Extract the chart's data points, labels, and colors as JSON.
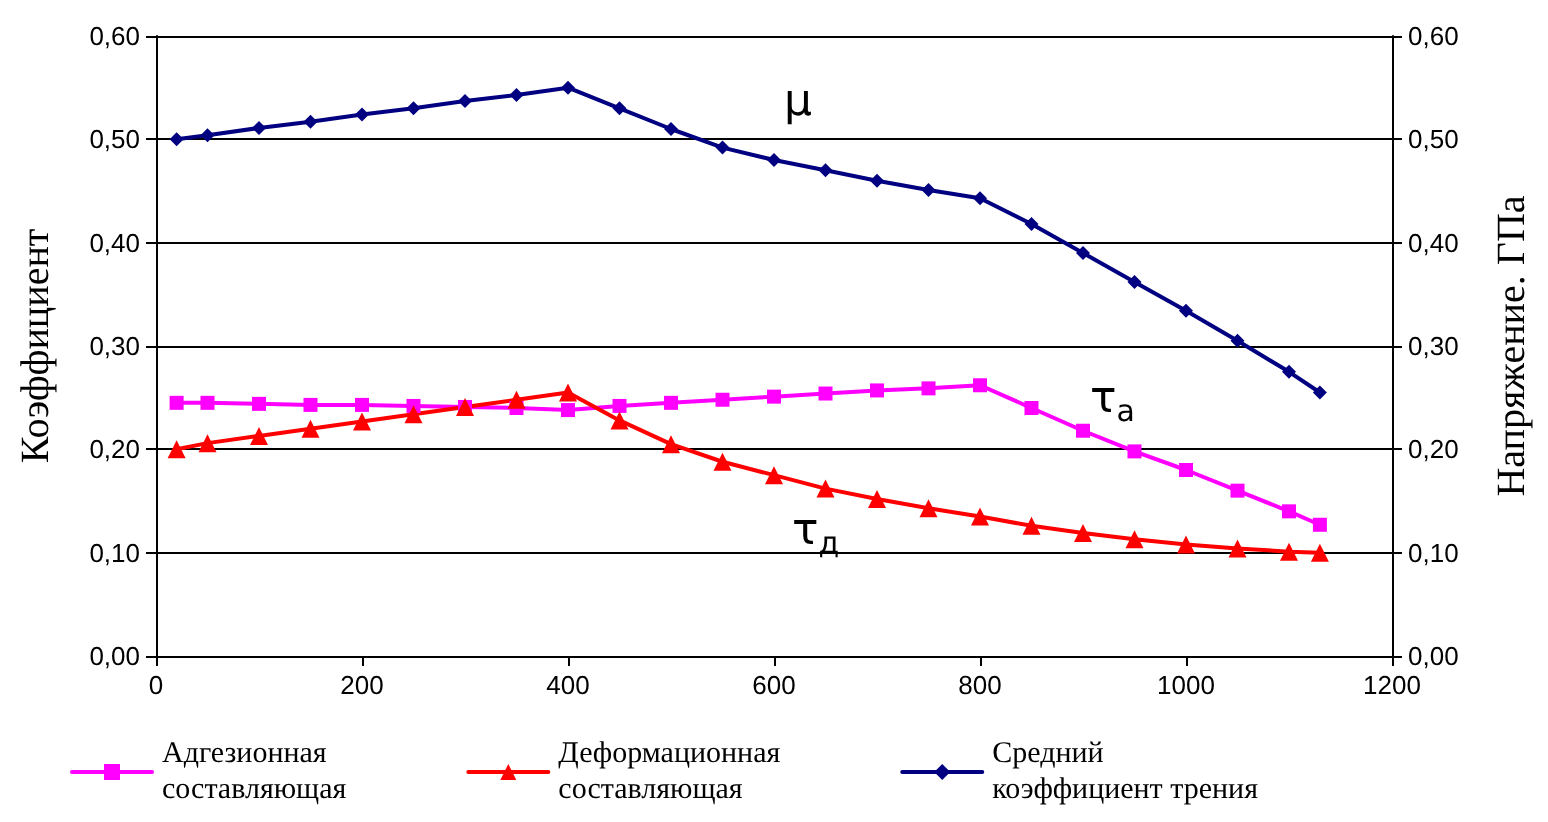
{
  "chart_data": {
    "type": "line",
    "xlabel": null,
    "ylabel": "Коэффициент",
    "y2label": "Напряжение. ГПа",
    "x": [
      20,
      50,
      100,
      150,
      200,
      250,
      300,
      350,
      400,
      450,
      500,
      550,
      600,
      650,
      700,
      750,
      800,
      850,
      900,
      950,
      1000,
      1050,
      1100,
      1130
    ],
    "series": [
      {
        "name": "Адгезионная\nсоставляющая",
        "color": "#ff00ff",
        "marker": "square",
        "values": [
          0.245,
          0.245,
          0.244,
          0.243,
          0.243,
          0.242,
          0.241,
          0.24,
          0.238,
          0.242,
          0.245,
          0.248,
          0.251,
          0.254,
          0.257,
          0.259,
          0.262,
          0.24,
          0.218,
          0.198,
          0.18,
          0.16,
          0.14,
          0.127
        ]
      },
      {
        "name": "Деформационная\nсоставляющая",
        "color": "#ff0000",
        "marker": "triangle",
        "values": [
          0.2,
          0.206,
          0.213,
          0.22,
          0.227,
          0.234,
          0.241,
          0.248,
          0.255,
          0.228,
          0.205,
          0.188,
          0.175,
          0.162,
          0.152,
          0.143,
          0.135,
          0.126,
          0.119,
          0.113,
          0.108,
          0.104,
          0.101,
          0.1
        ]
      },
      {
        "name": "Средний\nкоэффициент трения",
        "color": "#000080",
        "marker": "diamond",
        "values": [
          0.5,
          0.504,
          0.511,
          0.517,
          0.524,
          0.53,
          0.537,
          0.543,
          0.55,
          0.53,
          0.51,
          0.492,
          0.48,
          0.47,
          0.46,
          0.451,
          0.443,
          0.418,
          0.39,
          0.362,
          0.334,
          0.305,
          0.275,
          0.255
        ]
      }
    ],
    "xlim": [
      0,
      1200
    ],
    "xticks": [
      0,
      200,
      400,
      600,
      800,
      1000,
      1200
    ],
    "ylim": [
      0,
      0.6
    ],
    "yticks": [
      {
        "value": 0,
        "label": "0,00"
      },
      {
        "value": 0.1,
        "label": "0,10"
      },
      {
        "value": 0.2,
        "label": "0,20"
      },
      {
        "value": 0.3,
        "label": "0,30"
      },
      {
        "value": 0.4,
        "label": "0,40"
      },
      {
        "value": 0.5,
        "label": "0,50"
      },
      {
        "value": 0.6,
        "label": "0,60"
      }
    ],
    "y2lim": [
      0,
      0.6
    ],
    "y2ticks": [
      {
        "value": 0,
        "label": "0,00"
      },
      {
        "value": 0.1,
        "label": "0,10"
      },
      {
        "value": 0.2,
        "label": "0,20"
      },
      {
        "value": 0.3,
        "label": "0,30"
      },
      {
        "value": 0.4,
        "label": "0,40"
      },
      {
        "value": 0.5,
        "label": "0,50"
      },
      {
        "value": 0.6,
        "label": "0,60"
      }
    ],
    "annotations": [
      "μ",
      "τ$_{а}$",
      "τ$_{д}$"
    ],
    "grid": "y",
    "legend": "bottom",
    "line_style": "solid"
  }
}
